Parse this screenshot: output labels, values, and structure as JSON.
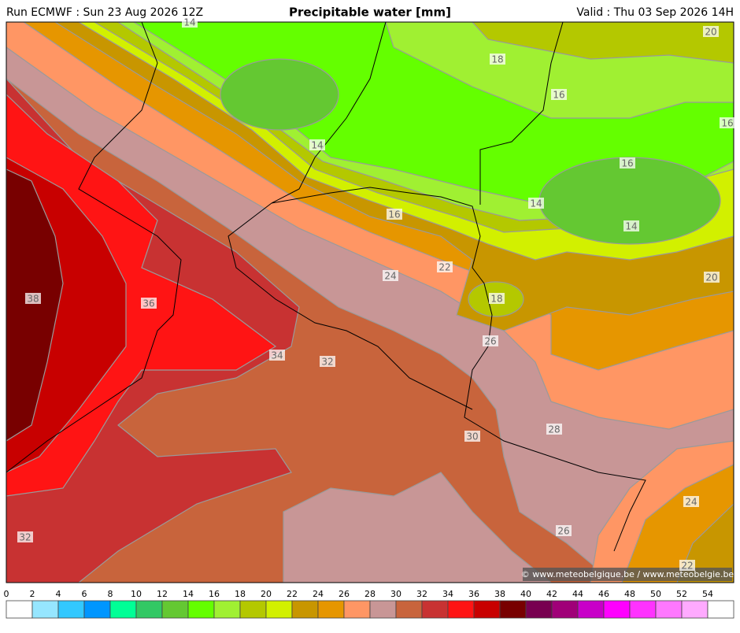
{
  "header": {
    "run": "Run ECMWF : Sun 23 Aug 2026 12Z",
    "title": "Precipitable water [mm]",
    "valid": "Valid : Thu 03 Sep 2026 14H"
  },
  "map": {
    "contour_labels": [
      14,
      18,
      20,
      16,
      16,
      14,
      16,
      14,
      14,
      16,
      24,
      22,
      18,
      20,
      38,
      36,
      34,
      32,
      26,
      28,
      30,
      24,
      26,
      32,
      22
    ],
    "credit": "© www.meteobelgique.be / www.meteobelgie.be"
  },
  "colorbar": {
    "ticks": [
      0,
      2,
      4,
      6,
      8,
      10,
      12,
      14,
      16,
      18,
      20,
      22,
      24,
      26,
      28,
      30,
      32,
      34,
      36,
      38,
      40,
      42,
      44,
      46,
      48,
      50,
      52,
      54
    ],
    "colors": [
      "#ffffff",
      "#96e6ff",
      "#32c8ff",
      "#0096ff",
      "#00ff96",
      "#32c864",
      "#64c832",
      "#64ff00",
      "#a0f032",
      "#b4c800",
      "#d2f000",
      "#c89600",
      "#e69600",
      "#ff9664",
      "#c89696",
      "#c8643c",
      "#c83232",
      "#ff1414",
      "#c80000",
      "#780000",
      "#780050",
      "#a00078",
      "#c800c8",
      "#ff00ff",
      "#ff32ff",
      "#ff78ff",
      "#ffaaff",
      "#ffffff"
    ]
  }
}
